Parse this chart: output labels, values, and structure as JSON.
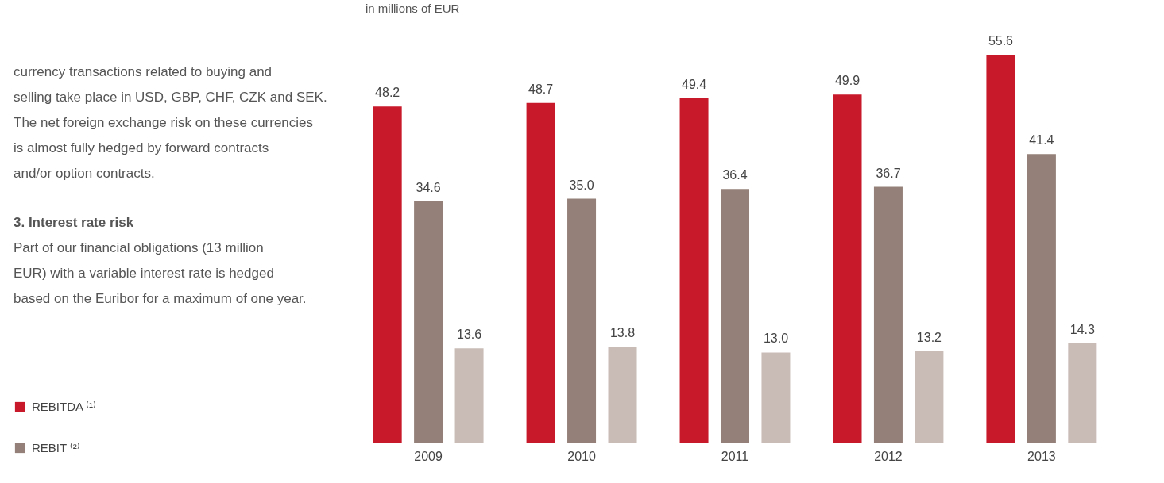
{
  "chart_data": {
    "type": "bar",
    "subtitle": "in millions of EUR",
    "categories": [
      "2009",
      "2010",
      "2011",
      "2012",
      "2013"
    ],
    "series": [
      {
        "name": "REBITDA ⁽¹⁾",
        "color": "#c8192b",
        "values": [
          48.2,
          48.7,
          49.4,
          49.9,
          55.6
        ],
        "value_labels": [
          "48.2",
          "48.7",
          "49.4",
          "49.9",
          "55.6"
        ]
      },
      {
        "name": "REBIT ⁽²⁾",
        "color": "#948079",
        "values": [
          34.6,
          35.0,
          36.4,
          36.7,
          41.4
        ],
        "value_labels": [
          "34.6",
          "35.0",
          "36.4",
          "36.7",
          "41.4"
        ]
      },
      {
        "color": "#c9bcb7",
        "values": [
          13.6,
          13.8,
          13.0,
          13.2,
          14.3
        ],
        "value_labels": [
          "13.6",
          "13.8",
          "13.0",
          "13.2",
          "14.3"
        ]
      }
    ],
    "legend": "bottom left",
    "annotations": [
      "currency transactions related to buying and selling take place in USD, GBP, CHF, CZK and SEK. The net foreign exchange risk on these currencies is almost fully hedged by forward contracts and/or option contracts.",
      "3. Interest rate risk",
      "Part of our financial obligations (13 million EUR) with a variable interest rate is hedged based on the Euribor for a maximum of one year."
    ]
  }
}
